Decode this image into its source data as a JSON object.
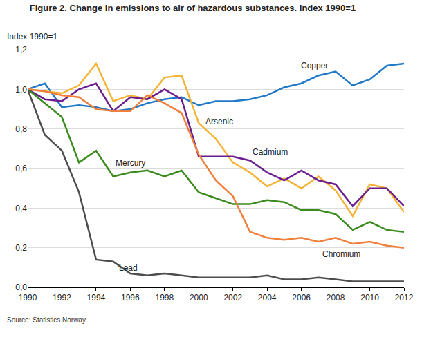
{
  "chart_data": {
    "type": "line",
    "title": "Figure 2. Change in emissions to air of hazardous substances. Index 1990=1",
    "y_label": "Index 1990=1",
    "source": "Source: Statistics Norway.",
    "x": [
      1990,
      1991,
      1992,
      1993,
      1994,
      1995,
      1996,
      1997,
      1998,
      1999,
      2000,
      2001,
      2002,
      2003,
      2004,
      2005,
      2006,
      2007,
      2008,
      2009,
      2010,
      2011,
      2012
    ],
    "series": [
      {
        "name": "Copper",
        "color": "#1f78c8",
        "values": [
          1.0,
          1.03,
          0.91,
          0.92,
          0.91,
          0.89,
          0.9,
          0.93,
          0.95,
          0.96,
          0.92,
          0.94,
          0.94,
          0.95,
          0.97,
          1.01,
          1.03,
          1.07,
          1.09,
          1.02,
          1.05,
          1.12,
          1.13
        ]
      },
      {
        "name": "Arsenic",
        "color": "#f5b335",
        "values": [
          1.0,
          0.99,
          0.98,
          1.02,
          1.13,
          0.94,
          0.97,
          0.95,
          1.06,
          1.07,
          0.83,
          0.75,
          0.63,
          0.58,
          0.51,
          0.55,
          0.5,
          0.56,
          0.49,
          0.36,
          0.52,
          0.5,
          0.38
        ]
      },
      {
        "name": "Cadmium",
        "color": "#6a1d8c",
        "values": [
          1.0,
          0.95,
          0.94,
          1.0,
          1.03,
          0.89,
          0.96,
          0.95,
          1.0,
          0.95,
          0.66,
          0.66,
          0.66,
          0.64,
          0.58,
          0.54,
          0.59,
          0.54,
          0.52,
          0.41,
          0.5,
          0.5,
          0.41
        ]
      },
      {
        "name": "Mercury",
        "color": "#3a8a1e",
        "values": [
          1.0,
          0.93,
          0.86,
          0.63,
          0.69,
          0.56,
          0.58,
          0.59,
          0.56,
          0.59,
          0.48,
          0.45,
          0.42,
          0.42,
          0.44,
          0.43,
          0.39,
          0.39,
          0.37,
          0.29,
          0.33,
          0.29,
          0.28
        ]
      },
      {
        "name": "Chromium",
        "color": "#f07f3c",
        "values": [
          1.0,
          0.99,
          0.97,
          0.96,
          0.9,
          0.89,
          0.89,
          0.97,
          0.93,
          0.88,
          0.67,
          0.54,
          0.46,
          0.28,
          0.25,
          0.24,
          0.25,
          0.23,
          0.25,
          0.22,
          0.23,
          0.21,
          0.2
        ]
      },
      {
        "name": "Lead",
        "color": "#4d4d4d",
        "values": [
          1.0,
          0.77,
          0.69,
          0.48,
          0.14,
          0.13,
          0.07,
          0.06,
          0.07,
          0.06,
          0.05,
          0.05,
          0.05,
          0.05,
          0.06,
          0.04,
          0.04,
          0.05,
          0.04,
          0.03,
          0.03,
          0.03,
          0.03
        ]
      }
    ],
    "xlim": [
      1990,
      2012
    ],
    "xticks": [
      1990,
      1992,
      1994,
      1996,
      1998,
      2000,
      2002,
      2004,
      2006,
      2008,
      2010,
      2012
    ],
    "ylim": [
      0,
      1.2
    ],
    "yticks": [
      {
        "value": 0,
        "label": "0,0"
      },
      {
        "value": 0.2,
        "label": "0,2"
      },
      {
        "value": 0.4,
        "label": "0,4"
      },
      {
        "value": 0.6,
        "label": "0,6"
      },
      {
        "value": 0.8,
        "label": "0,8"
      },
      {
        "value": 1,
        "label": "1,0"
      },
      {
        "value": 1.2,
        "label": "1,2"
      }
    ],
    "grid": true
  }
}
